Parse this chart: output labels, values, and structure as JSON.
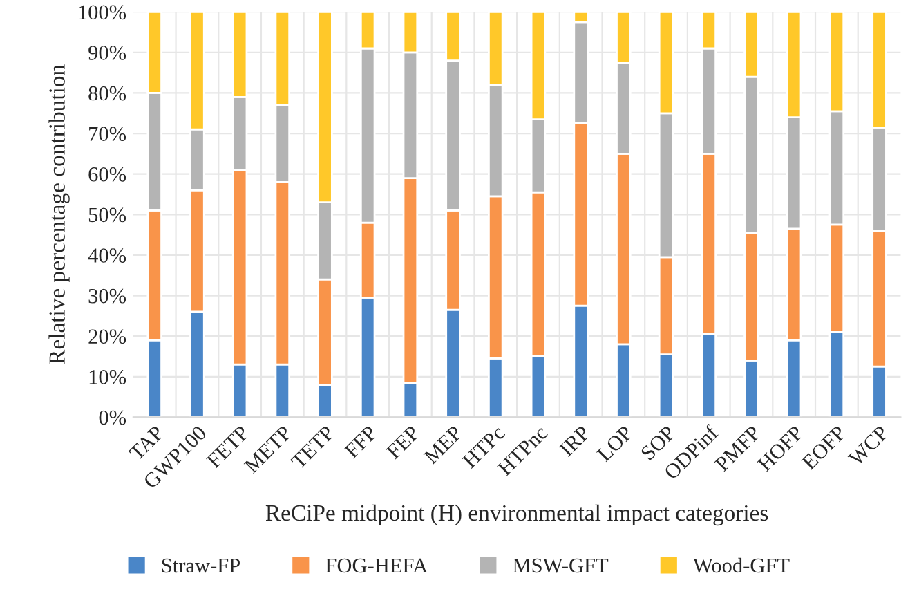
{
  "chart_data": {
    "type": "bar",
    "stacked": true,
    "xlabel": "ReCiPe midpoint (H) environmental impact categories",
    "ylabel": "Relative percentage contribution",
    "categories": [
      "TAP",
      "GWP100",
      "FETP",
      "METP",
      "TETP",
      "FFP",
      "FEP",
      "MEP",
      "HTPc",
      "HTPnc",
      "IRP",
      "LOP",
      "SOP",
      "ODPinf",
      "PMFP",
      "HOFP",
      "EOFP",
      "WCP"
    ],
    "series": [
      {
        "name": "Straw-FP",
        "color": "#4a86c8",
        "values": [
          19,
          26,
          13,
          13,
          8,
          29.5,
          8.5,
          26.5,
          14.5,
          15,
          27.5,
          18,
          15.5,
          20.5,
          14,
          19,
          21,
          12.5
        ]
      },
      {
        "name": "FOG-HEFA",
        "color": "#f9944a",
        "values": [
          32,
          30,
          48,
          45,
          26,
          18.5,
          50.5,
          24.5,
          40,
          40.5,
          45,
          47,
          24,
          44.5,
          31.5,
          27.5,
          26.5,
          33.5
        ]
      },
      {
        "name": "MSW-GFT",
        "color": "#b4b4b4",
        "values": [
          29,
          15,
          18,
          19,
          19,
          43,
          31,
          37,
          27.5,
          18,
          25,
          22.5,
          35.5,
          26,
          38.5,
          27.5,
          28,
          25.5
        ]
      },
      {
        "name": "Wood-GFT",
        "color": "#ffc829",
        "values": [
          20,
          29,
          21,
          23,
          47,
          9,
          10,
          12,
          18,
          26.5,
          2.5,
          12.5,
          25,
          9,
          16,
          26,
          24.5,
          28.5
        ]
      }
    ],
    "ylim": [
      0,
      100
    ],
    "yticks": [
      {
        "value": 0,
        "label": "0%"
      },
      {
        "value": 10,
        "label": "10%"
      },
      {
        "value": 20,
        "label": "20%"
      },
      {
        "value": 30,
        "label": "30%"
      },
      {
        "value": 40,
        "label": "40%"
      },
      {
        "value": 50,
        "label": "50%"
      },
      {
        "value": 60,
        "label": "60%"
      },
      {
        "value": 70,
        "label": "70%"
      },
      {
        "value": 80,
        "label": "80%"
      },
      {
        "value": 90,
        "label": "90%"
      },
      {
        "value": 100,
        "label": "100%"
      }
    ],
    "grid": true,
    "legend": "bottom"
  }
}
